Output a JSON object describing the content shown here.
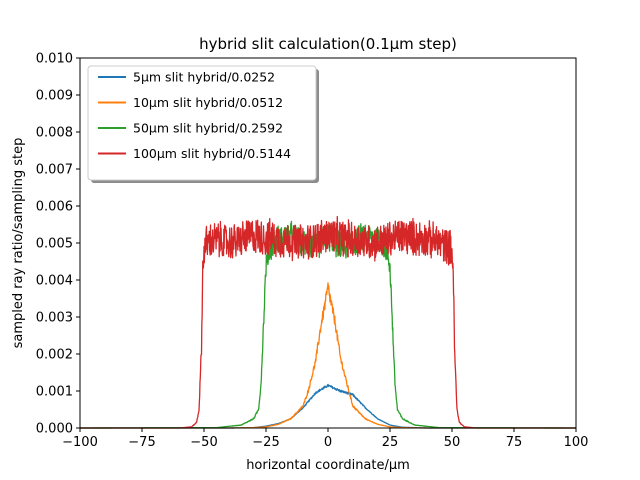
{
  "chart_data": {
    "type": "line",
    "title": "hybrid slit calculation(0.1μm step)",
    "xlabel": "horizontal coordinate/μm",
    "ylabel": "sampled ray ratio/sampling step",
    "xlim": [
      -100,
      100
    ],
    "ylim": [
      0,
      0.01
    ],
    "xticks": [
      -100,
      -75,
      -50,
      -25,
      0,
      25,
      50,
      75,
      100
    ],
    "xtick_labels": [
      "−100",
      "−75",
      "−50",
      "−25",
      "0",
      "25",
      "50",
      "75",
      "100"
    ],
    "yticks": [
      0,
      0.001,
      0.002,
      0.003,
      0.004,
      0.005,
      0.006,
      0.007,
      0.008,
      0.009,
      0.01
    ],
    "ytick_labels": [
      "0.000",
      "0.001",
      "0.002",
      "0.003",
      "0.004",
      "0.005",
      "0.006",
      "0.007",
      "0.008",
      "0.009",
      "0.010"
    ],
    "grid": false,
    "legend_position": "top-left",
    "series": [
      {
        "name": "5μm slit hybrid/0.0252",
        "color": "#1f77b4",
        "x": [
          -100,
          -40,
          -30,
          -25,
          -20,
          -15,
          -10,
          -5,
          0,
          5,
          10,
          15,
          20,
          25,
          30,
          40,
          100
        ],
        "y": [
          0,
          0,
          1e-05,
          5e-05,
          0.00012,
          0.00025,
          0.00055,
          0.00095,
          0.00115,
          0.001,
          0.0009,
          0.00055,
          0.00025,
          8e-05,
          2e-05,
          0,
          0
        ]
      },
      {
        "name": "10μm slit hybrid/0.0512",
        "color": "#ff7f0e",
        "x": [
          -100,
          -40,
          -30,
          -25,
          -20,
          -15,
          -10,
          -8,
          -5,
          -3,
          0,
          3,
          5,
          8,
          10,
          15,
          20,
          25,
          30,
          40,
          100
        ],
        "y": [
          0,
          0,
          1e-05,
          3e-05,
          0.0001,
          0.00025,
          0.0006,
          0.001,
          0.0018,
          0.0027,
          0.0038,
          0.0028,
          0.0019,
          0.0011,
          0.0006,
          0.00025,
          0.0001,
          3e-05,
          1e-05,
          0,
          0
        ]
      },
      {
        "name": "50μm slit hybrid/0.2592",
        "color": "#2ca02c",
        "x": [
          -100,
          -45,
          -35,
          -30,
          -28,
          -27,
          -26,
          -25,
          -24,
          -23,
          -22,
          -20,
          -15,
          -10,
          -5,
          0,
          5,
          10,
          15,
          20,
          22,
          23,
          24,
          25,
          26,
          27,
          28,
          30,
          35,
          45,
          100
        ],
        "y": [
          0,
          1e-05,
          8e-05,
          0.00025,
          0.0005,
          0.0012,
          0.0028,
          0.0044,
          0.0047,
          0.0049,
          0.005,
          0.0051,
          0.0052,
          0.005,
          0.0049,
          0.0052,
          0.0049,
          0.005,
          0.0052,
          0.0051,
          0.005,
          0.0049,
          0.0047,
          0.0044,
          0.0028,
          0.0012,
          0.0005,
          0.00025,
          8e-05,
          1e-05,
          0
        ]
      },
      {
        "name": "100μm slit hybrid/0.5144",
        "color": "#d62728",
        "x": [
          -100,
          -60,
          -55,
          -53,
          -52,
          -51,
          -50.5,
          -50,
          -49,
          -45,
          -40,
          -30,
          -20,
          -10,
          0,
          10,
          20,
          30,
          40,
          45,
          49,
          50,
          50.5,
          51,
          52,
          53,
          55,
          60,
          100
        ],
        "y": [
          0,
          0,
          3e-05,
          0.00015,
          0.0005,
          0.0022,
          0.0043,
          0.0048,
          0.005,
          0.0051,
          0.005,
          0.0052,
          0.0051,
          0.005,
          0.0052,
          0.0051,
          0.005,
          0.0052,
          0.0051,
          0.005,
          0.0049,
          0.0048,
          0.0043,
          0.0022,
          0.0005,
          0.00015,
          3e-05,
          0,
          0
        ]
      }
    ]
  }
}
